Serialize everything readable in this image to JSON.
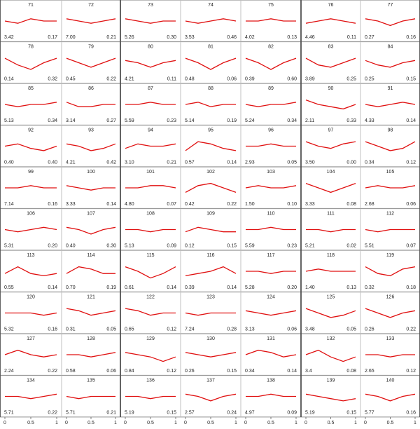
{
  "chart_data": {
    "type": "line",
    "color": "#e01010",
    "x": [
      0,
      0.25,
      0.5,
      0.75,
      1
    ],
    "xlim": [
      0,
      1
    ],
    "xticks": [
      0,
      0.5,
      1
    ],
    "ylim": [
      0,
      1
    ],
    "panels": [
      {
        "label": "71",
        "left": "3.42",
        "right": "0.17",
        "values": [
          0.5,
          0.4,
          0.6,
          0.5,
          0.5
        ]
      },
      {
        "label": "72",
        "left": "7.00",
        "right": "0.21",
        "values": [
          0.6,
          0.5,
          0.4,
          0.5,
          0.6
        ]
      },
      {
        "label": "73",
        "left": "5.26",
        "right": "0.30",
        "values": [
          0.6,
          0.5,
          0.4,
          0.5,
          0.5
        ]
      },
      {
        "label": "74",
        "left": "3.53",
        "right": "0.46",
        "values": [
          0.5,
          0.4,
          0.5,
          0.6,
          0.5
        ]
      },
      {
        "label": "75",
        "left": "4.02",
        "right": "0.13",
        "values": [
          0.5,
          0.5,
          0.6,
          0.5,
          0.5
        ]
      },
      {
        "label": "76",
        "left": "4.46",
        "right": "0.11",
        "values": [
          0.4,
          0.5,
          0.6,
          0.5,
          0.4
        ]
      },
      {
        "label": "77",
        "left": "0.27",
        "right": "0.16",
        "values": [
          0.6,
          0.5,
          0.3,
          0.5,
          0.6
        ]
      },
      {
        "label": "78",
        "left": "0.14",
        "right": "0.32",
        "values": [
          0.7,
          0.4,
          0.2,
          0.5,
          0.7
        ]
      },
      {
        "label": "79",
        "left": "0.45",
        "right": "0.22",
        "values": [
          0.7,
          0.5,
          0.3,
          0.5,
          0.7
        ]
      },
      {
        "label": "80",
        "left": "4.21",
        "right": "0.11",
        "values": [
          0.6,
          0.5,
          0.3,
          0.5,
          0.6
        ]
      },
      {
        "label": "81",
        "left": "0.48",
        "right": "0.06",
        "values": [
          0.7,
          0.5,
          0.2,
          0.5,
          0.7
        ]
      },
      {
        "label": "82",
        "left": "0.39",
        "right": "0.60",
        "values": [
          0.7,
          0.5,
          0.2,
          0.5,
          0.7
        ]
      },
      {
        "label": "83",
        "left": "3.89",
        "right": "0.25",
        "values": [
          0.7,
          0.4,
          0.3,
          0.5,
          0.7
        ]
      },
      {
        "label": "84",
        "left": "0.25",
        "right": "0.15",
        "values": [
          0.6,
          0.4,
          0.3,
          0.5,
          0.6
        ]
      },
      {
        "label": "85",
        "left": "5.13",
        "right": "0.34",
        "values": [
          0.5,
          0.4,
          0.5,
          0.5,
          0.6
        ]
      },
      {
        "label": "86",
        "left": "3.14",
        "right": "0.27",
        "values": [
          0.6,
          0.4,
          0.4,
          0.5,
          0.5
        ]
      },
      {
        "label": "87",
        "left": "5.59",
        "right": "0.23",
        "values": [
          0.5,
          0.5,
          0.6,
          0.5,
          0.5
        ]
      },
      {
        "label": "88",
        "left": "5.14",
        "right": "0.19",
        "values": [
          0.5,
          0.6,
          0.4,
          0.5,
          0.5
        ]
      },
      {
        "label": "89",
        "left": "5.24",
        "right": "0.34",
        "values": [
          0.5,
          0.4,
          0.5,
          0.5,
          0.6
        ]
      },
      {
        "label": "90",
        "left": "2.11",
        "right": "0.33",
        "values": [
          0.7,
          0.5,
          0.4,
          0.3,
          0.5
        ]
      },
      {
        "label": "91",
        "left": "4.33",
        "right": "0.14",
        "values": [
          0.5,
          0.4,
          0.5,
          0.6,
          0.5
        ]
      },
      {
        "label": "92",
        "left": "0.40",
        "right": "0.40",
        "values": [
          0.5,
          0.6,
          0.4,
          0.3,
          0.5
        ]
      },
      {
        "label": "93",
        "left": "4.21",
        "right": "0.42",
        "values": [
          0.6,
          0.5,
          0.3,
          0.4,
          0.6
        ]
      },
      {
        "label": "94",
        "left": "3.10",
        "right": "0.21",
        "values": [
          0.4,
          0.6,
          0.5,
          0.5,
          0.6
        ]
      },
      {
        "label": "95",
        "left": "0.57",
        "right": "0.14",
        "values": [
          0.3,
          0.7,
          0.6,
          0.4,
          0.3
        ]
      },
      {
        "label": "96",
        "left": "2.93",
        "right": "0.05",
        "values": [
          0.5,
          0.5,
          0.6,
          0.5,
          0.5
        ]
      },
      {
        "label": "97",
        "left": "3.50",
        "right": "0.00",
        "values": [
          0.7,
          0.5,
          0.4,
          0.6,
          0.7
        ]
      },
      {
        "label": "98",
        "left": "0.34",
        "right": "0.12",
        "values": [
          0.7,
          0.5,
          0.3,
          0.4,
          0.7
        ]
      },
      {
        "label": "99",
        "left": "7.14",
        "right": "0.16",
        "values": [
          0.5,
          0.5,
          0.6,
          0.5,
          0.5
        ]
      },
      {
        "label": "100",
        "left": "3.33",
        "right": "0.14",
        "values": [
          0.6,
          0.5,
          0.4,
          0.5,
          0.5
        ]
      },
      {
        "label": "101",
        "left": "4.80",
        "right": "0.07",
        "values": [
          0.5,
          0.5,
          0.6,
          0.6,
          0.5
        ]
      },
      {
        "label": "102",
        "left": "0.42",
        "right": "0.22",
        "values": [
          0.3,
          0.6,
          0.7,
          0.5,
          0.3
        ]
      },
      {
        "label": "103",
        "left": "1.50",
        "right": "0.10",
        "values": [
          0.5,
          0.6,
          0.5,
          0.5,
          0.6
        ]
      },
      {
        "label": "104",
        "left": "3.33",
        "right": "0.08",
        "values": [
          0.7,
          0.5,
          0.3,
          0.5,
          0.7
        ]
      },
      {
        "label": "105",
        "left": "2.68",
        "right": "0.06",
        "values": [
          0.5,
          0.6,
          0.5,
          0.5,
          0.6
        ]
      },
      {
        "label": "106",
        "left": "5.31",
        "right": "0.20",
        "values": [
          0.5,
          0.4,
          0.5,
          0.6,
          0.5
        ]
      },
      {
        "label": "107",
        "left": "0.40",
        "right": "0.30",
        "values": [
          0.6,
          0.5,
          0.3,
          0.5,
          0.6
        ]
      },
      {
        "label": "108",
        "left": "5.13",
        "right": "0.09",
        "values": [
          0.5,
          0.5,
          0.4,
          0.5,
          0.5
        ]
      },
      {
        "label": "109",
        "left": "0.12",
        "right": "0.15",
        "values": [
          0.4,
          0.6,
          0.5,
          0.4,
          0.4
        ]
      },
      {
        "label": "110",
        "left": "5.59",
        "right": "0.23",
        "values": [
          0.5,
          0.5,
          0.6,
          0.5,
          0.5
        ]
      },
      {
        "label": "111",
        "left": "5.21",
        "right": "0.02",
        "values": [
          0.5,
          0.5,
          0.4,
          0.5,
          0.5
        ]
      },
      {
        "label": "112",
        "left": "5.51",
        "right": "0.07",
        "values": [
          0.5,
          0.4,
          0.5,
          0.5,
          0.5
        ]
      },
      {
        "label": "113",
        "left": "0.55",
        "right": "0.14",
        "values": [
          0.4,
          0.7,
          0.4,
          0.3,
          0.4
        ]
      },
      {
        "label": "114",
        "left": "0.70",
        "right": "0.19",
        "values": [
          0.4,
          0.7,
          0.6,
          0.4,
          0.4
        ]
      },
      {
        "label": "115",
        "left": "0.61",
        "right": "0.14",
        "values": [
          0.7,
          0.5,
          0.2,
          0.4,
          0.7
        ]
      },
      {
        "label": "116",
        "left": "0.39",
        "right": "0.14",
        "values": [
          0.3,
          0.4,
          0.5,
          0.7,
          0.4
        ]
      },
      {
        "label": "117",
        "left": "5.28",
        "right": "0.20",
        "values": [
          0.5,
          0.5,
          0.4,
          0.5,
          0.5
        ]
      },
      {
        "label": "118",
        "left": "1.40",
        "right": "0.13",
        "values": [
          0.5,
          0.6,
          0.5,
          0.5,
          0.5
        ]
      },
      {
        "label": "119",
        "left": "0.32",
        "right": "0.18",
        "values": [
          0.7,
          0.4,
          0.3,
          0.6,
          0.7
        ]
      },
      {
        "label": "120",
        "left": "5.32",
        "right": "0.16",
        "values": [
          0.5,
          0.5,
          0.5,
          0.4,
          0.5
        ]
      },
      {
        "label": "121",
        "left": "0.31",
        "right": "0.05",
        "values": [
          0.7,
          0.6,
          0.4,
          0.5,
          0.6
        ]
      },
      {
        "label": "122",
        "left": "0.65",
        "right": "0.12",
        "values": [
          0.7,
          0.6,
          0.4,
          0.5,
          0.5
        ]
      },
      {
        "label": "123",
        "left": "7.24",
        "right": "0.28",
        "values": [
          0.5,
          0.4,
          0.5,
          0.5,
          0.5
        ]
      },
      {
        "label": "124",
        "left": "3.13",
        "right": "0.06",
        "values": [
          0.6,
          0.5,
          0.4,
          0.5,
          0.6
        ]
      },
      {
        "label": "125",
        "left": "3.48",
        "right": "0.05",
        "values": [
          0.7,
          0.5,
          0.3,
          0.4,
          0.6
        ]
      },
      {
        "label": "126",
        "left": "0.26",
        "right": "0.22",
        "values": [
          0.7,
          0.5,
          0.3,
          0.5,
          0.6
        ]
      },
      {
        "label": "127",
        "left": "2.24",
        "right": "0.22",
        "values": [
          0.5,
          0.7,
          0.5,
          0.4,
          0.5
        ]
      },
      {
        "label": "128",
        "left": "0.58",
        "right": "0.06",
        "values": [
          0.5,
          0.5,
          0.4,
          0.5,
          0.6
        ]
      },
      {
        "label": "129",
        "left": "0.84",
        "right": "0.12",
        "values": [
          0.6,
          0.5,
          0.4,
          0.2,
          0.4
        ]
      },
      {
        "label": "130",
        "left": "0.26",
        "right": "0.15",
        "values": [
          0.6,
          0.5,
          0.4,
          0.5,
          0.6
        ]
      },
      {
        "label": "131",
        "left": "0.34",
        "right": "0.14",
        "values": [
          0.5,
          0.7,
          0.6,
          0.4,
          0.5
        ]
      },
      {
        "label": "132",
        "left": "3.4",
        "right": "0.08",
        "values": [
          0.5,
          0.7,
          0.4,
          0.2,
          0.4
        ]
      },
      {
        "label": "133",
        "left": "2.65",
        "right": "0.12",
        "values": [
          0.5,
          0.5,
          0.4,
          0.5,
          0.5
        ]
      },
      {
        "label": "134",
        "left": "5.71",
        "right": "0.22",
        "values": [
          0.5,
          0.5,
          0.4,
          0.5,
          0.6
        ]
      },
      {
        "label": "135",
        "left": "5.71",
        "right": "0.21",
        "values": [
          0.5,
          0.4,
          0.5,
          0.5,
          0.5
        ]
      },
      {
        "label": "136",
        "left": "5.19",
        "right": "0.15",
        "values": [
          0.5,
          0.5,
          0.4,
          0.5,
          0.5
        ]
      },
      {
        "label": "137",
        "left": "2.57",
        "right": "0.24",
        "values": [
          0.6,
          0.5,
          0.3,
          0.5,
          0.6
        ]
      },
      {
        "label": "138",
        "left": "4.97",
        "right": "0.09",
        "values": [
          0.5,
          0.5,
          0.6,
          0.5,
          0.5
        ]
      },
      {
        "label": "139",
        "left": "5.19",
        "right": "0.15",
        "values": [
          0.6,
          0.5,
          0.4,
          0.3,
          0.4
        ]
      },
      {
        "label": "140",
        "left": "5.77",
        "right": "0.16",
        "values": [
          0.6,
          0.5,
          0.3,
          0.5,
          0.6
        ]
      }
    ]
  }
}
